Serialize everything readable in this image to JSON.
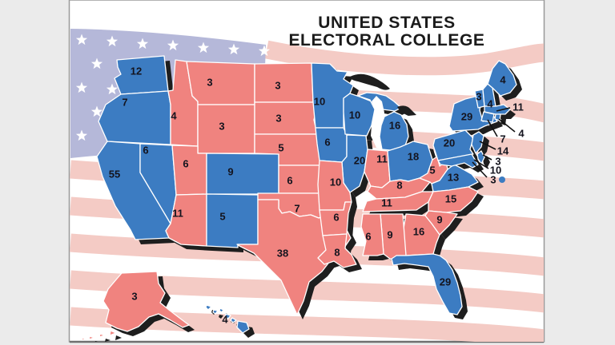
{
  "title": {
    "line1": "UNITED STATES",
    "line2": "ELECTORAL COLLEGE"
  },
  "colors": {
    "democrat": "#3c7cc2",
    "republican": "#f0837f",
    "shadow": "#1e1e1e",
    "flag_canton": "#b5b8d9",
    "flag_stripe": "#f4cbc5",
    "flag_star": "#ffffff",
    "label_text": "#14141e"
  },
  "legend_note": "",
  "states": [
    {
      "id": "WA",
      "name": "Washington",
      "ev": 12,
      "party": "democrat"
    },
    {
      "id": "OR",
      "name": "Oregon",
      "ev": 7,
      "party": "democrat"
    },
    {
      "id": "CA",
      "name": "California",
      "ev": 55,
      "party": "democrat"
    },
    {
      "id": "NV",
      "name": "Nevada",
      "ev": 6,
      "party": "democrat"
    },
    {
      "id": "ID",
      "name": "Idaho",
      "ev": 4,
      "party": "republican"
    },
    {
      "id": "MT",
      "name": "Montana",
      "ev": 3,
      "party": "republican"
    },
    {
      "id": "WY",
      "name": "Wyoming",
      "ev": 3,
      "party": "republican"
    },
    {
      "id": "UT",
      "name": "Utah",
      "ev": 6,
      "party": "republican"
    },
    {
      "id": "CO",
      "name": "Colorado",
      "ev": 9,
      "party": "democrat"
    },
    {
      "id": "AZ",
      "name": "Arizona",
      "ev": 11,
      "party": "republican"
    },
    {
      "id": "NM",
      "name": "New Mexico",
      "ev": 5,
      "party": "democrat"
    },
    {
      "id": "ND",
      "name": "North Dakota",
      "ev": 3,
      "party": "republican"
    },
    {
      "id": "SD",
      "name": "South Dakota",
      "ev": 3,
      "party": "republican"
    },
    {
      "id": "NE",
      "name": "Nebraska",
      "ev": 5,
      "party": "republican"
    },
    {
      "id": "KS",
      "name": "Kansas",
      "ev": 6,
      "party": "republican"
    },
    {
      "id": "OK",
      "name": "Oklahoma",
      "ev": 7,
      "party": "republican"
    },
    {
      "id": "TX",
      "name": "Texas",
      "ev": 38,
      "party": "republican"
    },
    {
      "id": "MN",
      "name": "Minnesota",
      "ev": 10,
      "party": "democrat"
    },
    {
      "id": "IA",
      "name": "Iowa",
      "ev": 6,
      "party": "democrat"
    },
    {
      "id": "WI",
      "name": "Wisconsin",
      "ev": 10,
      "party": "democrat"
    },
    {
      "id": "IL",
      "name": "Illinois",
      "ev": 20,
      "party": "democrat"
    },
    {
      "id": "MO",
      "name": "Missouri",
      "ev": 10,
      "party": "republican"
    },
    {
      "id": "MI",
      "name": "Michigan",
      "ev": 16,
      "party": "democrat"
    },
    {
      "id": "IN",
      "name": "Indiana",
      "ev": 11,
      "party": "republican"
    },
    {
      "id": "OH",
      "name": "Ohio",
      "ev": 18,
      "party": "democrat"
    },
    {
      "id": "KY",
      "name": "Kentucky",
      "ev": 8,
      "party": "republican"
    },
    {
      "id": "TN",
      "name": "Tennessee",
      "ev": 11,
      "party": "republican"
    },
    {
      "id": "WV",
      "name": "West Virginia",
      "ev": 5,
      "party": "republican"
    },
    {
      "id": "VA",
      "name": "Virginia",
      "ev": 13,
      "party": "democrat"
    },
    {
      "id": "NC",
      "name": "North Carolina",
      "ev": 15,
      "party": "republican"
    },
    {
      "id": "SC",
      "name": "South Carolina",
      "ev": 9,
      "party": "republican"
    },
    {
      "id": "GA",
      "name": "Georgia",
      "ev": 16,
      "party": "republican"
    },
    {
      "id": "AL",
      "name": "Alabama",
      "ev": 9,
      "party": "republican"
    },
    {
      "id": "MS",
      "name": "Mississippi",
      "ev": 6,
      "party": "republican"
    },
    {
      "id": "AR",
      "name": "Arkansas",
      "ev": 6,
      "party": "republican"
    },
    {
      "id": "LA",
      "name": "Louisiana",
      "ev": 8,
      "party": "republican"
    },
    {
      "id": "FL",
      "name": "Florida",
      "ev": 29,
      "party": "democrat"
    },
    {
      "id": "PA",
      "name": "Pennsylvania",
      "ev": 20,
      "party": "democrat"
    },
    {
      "id": "NY",
      "name": "New York",
      "ev": 29,
      "party": "democrat"
    },
    {
      "id": "VT",
      "name": "Vermont",
      "ev": 3,
      "party": "democrat"
    },
    {
      "id": "NH",
      "name": "New Hampshire",
      "ev": 4,
      "party": "democrat"
    },
    {
      "id": "ME",
      "name": "Maine",
      "ev": 4,
      "party": "democrat"
    },
    {
      "id": "MA",
      "name": "Massachusetts",
      "ev": 11,
      "party": "democrat"
    },
    {
      "id": "RI",
      "name": "Rhode Island",
      "ev": 4,
      "party": "democrat"
    },
    {
      "id": "CT",
      "name": "Connecticut",
      "ev": 7,
      "party": "democrat"
    },
    {
      "id": "NJ",
      "name": "New Jersey",
      "ev": 14,
      "party": "democrat"
    },
    {
      "id": "DE",
      "name": "Delaware",
      "ev": 3,
      "party": "democrat"
    },
    {
      "id": "MD",
      "name": "Maryland",
      "ev": 10,
      "party": "democrat"
    },
    {
      "id": "DC",
      "name": "District of Columbia",
      "ev": 3,
      "party": "democrat"
    },
    {
      "id": "AK",
      "name": "Alaska",
      "ev": 3,
      "party": "republican"
    },
    {
      "id": "HI",
      "name": "Hawaii",
      "ev": 4,
      "party": "democrat"
    }
  ]
}
